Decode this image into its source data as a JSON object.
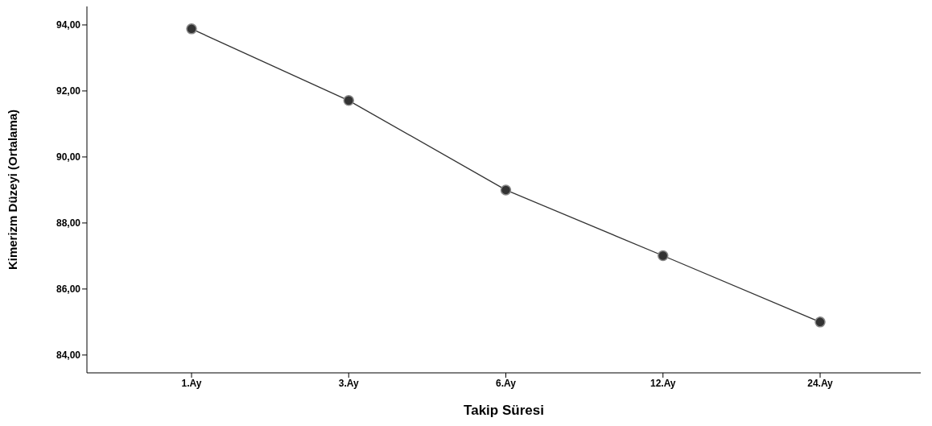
{
  "chart_data": {
    "type": "line",
    "xlabel": "Takip Süresi",
    "ylabel": "Kimerizm Düzeyi (Ortalama)",
    "categories": [
      "1.Ay",
      "3.Ay",
      "6.Ay",
      "12.Ay",
      "24.Ay"
    ],
    "series": [
      {
        "color": "#333333",
        "values": [
          93.88,
          91.71,
          89.0,
          87.01,
          85.0
        ]
      }
    ],
    "ylim": [
      83.46,
      94.56
    ],
    "yticks": [
      {
        "value": 84,
        "label": "84,00"
      },
      {
        "value": 86,
        "label": "86,00"
      },
      {
        "value": 88,
        "label": "88,00"
      },
      {
        "value": 90,
        "label": "90,00"
      },
      {
        "value": 92,
        "label": "92,00"
      },
      {
        "value": 94,
        "label": "94,00"
      }
    ],
    "grid": false,
    "legend": false,
    "marker": "circle",
    "line_style": "solid"
  }
}
